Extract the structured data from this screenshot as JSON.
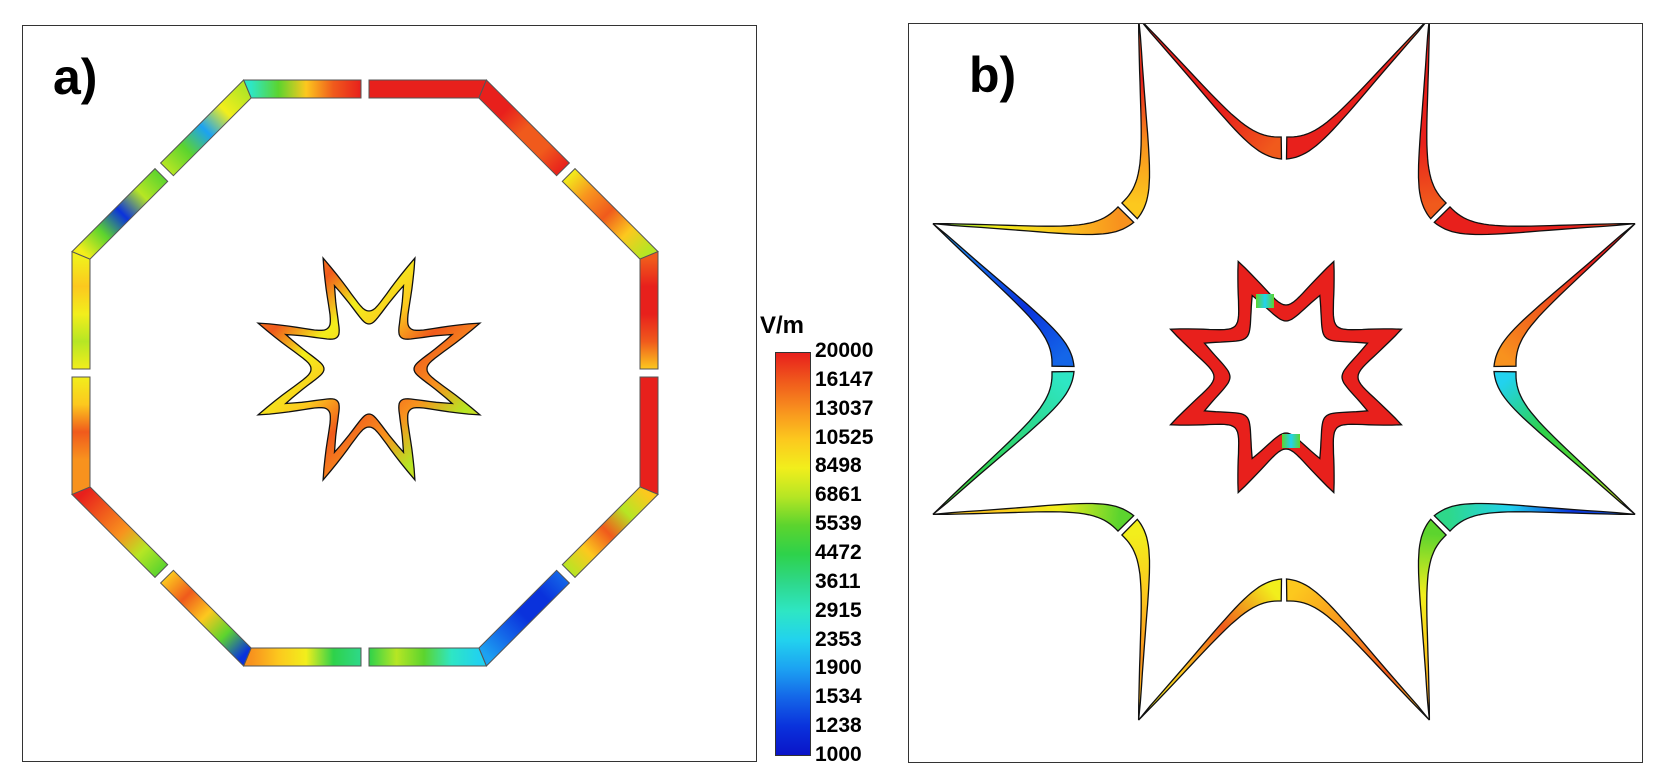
{
  "panels": [
    {
      "label": "a)",
      "shape": "octagon-ring-with-star"
    },
    {
      "label": "b)",
      "shape": "curved-star-ring-with-star"
    }
  ],
  "colorbar": {
    "unit": "V/m",
    "ticks": [
      "20000",
      "16147",
      "13037",
      "10525",
      "8498",
      "6861",
      "5539",
      "4472",
      "3611",
      "2915",
      "2353",
      "1900",
      "1534",
      "1238",
      "1000"
    ],
    "colors": [
      "#e8201c",
      "#f05a1c",
      "#f8921e",
      "#fcc81e",
      "#f2ee1c",
      "#b6e624",
      "#5cd42e",
      "#2ed24a",
      "#2ed88a",
      "#2ee6c4",
      "#22d2ee",
      "#1ca2f2",
      "#1466e8",
      "#0a32dc",
      "#0a14c8"
    ]
  },
  "outline_color": "#111111"
}
